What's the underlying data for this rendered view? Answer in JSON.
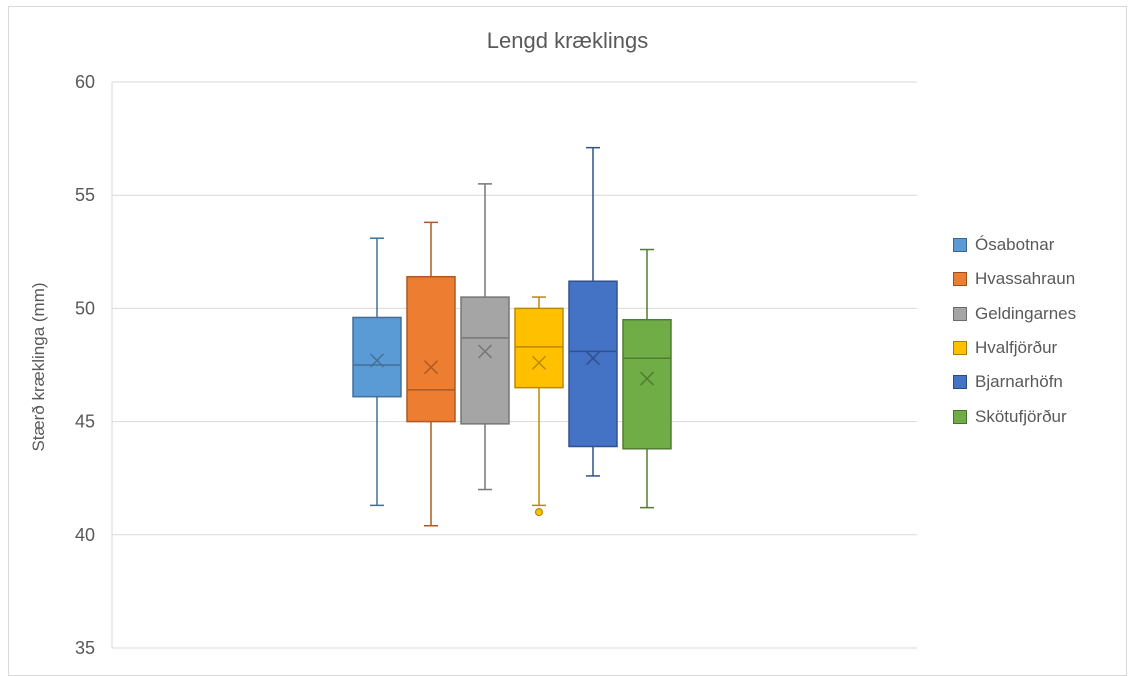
{
  "chart_data": {
    "type": "boxplot",
    "title": "Lengd kræklings",
    "ylabel": "Stærð kræklinga (mm)",
    "ylim": [
      35,
      60
    ],
    "yticks": [
      35,
      40,
      45,
      50,
      55,
      60
    ],
    "grid": true,
    "legend_position": "right",
    "series": [
      {
        "name": "Ósabotnar",
        "color": "#5b9bd5",
        "min": 41.3,
        "q1": 46.1,
        "median": 47.5,
        "q3": 49.6,
        "max": 53.1,
        "mean": 47.7,
        "outliers": []
      },
      {
        "name": "Hvassahraun",
        "color": "#ed7d31",
        "min": 40.4,
        "q1": 45.0,
        "median": 46.4,
        "q3": 51.4,
        "max": 53.8,
        "mean": 47.4,
        "outliers": []
      },
      {
        "name": "Geldingarnes",
        "color": "#a5a5a5",
        "min": 42.0,
        "q1": 44.9,
        "median": 48.7,
        "q3": 50.5,
        "max": 55.5,
        "mean": 48.1,
        "outliers": []
      },
      {
        "name": "Hvalfjörður",
        "color": "#ffc000",
        "min": 41.3,
        "q1": 46.5,
        "median": 48.3,
        "q3": 50.0,
        "max": 50.5,
        "mean": 47.6,
        "outliers": [
          41.0
        ]
      },
      {
        "name": "Bjarnarhöfn",
        "color": "#4472c4",
        "min": 42.6,
        "q1": 43.9,
        "median": 48.1,
        "q3": 51.2,
        "max": 57.1,
        "mean": 47.8,
        "outliers": []
      },
      {
        "name": "Skötufjörður",
        "color": "#70ad47",
        "min": 41.2,
        "q1": 43.8,
        "median": 47.8,
        "q3": 49.5,
        "max": 52.6,
        "mean": 46.9,
        "outliers": []
      }
    ]
  }
}
